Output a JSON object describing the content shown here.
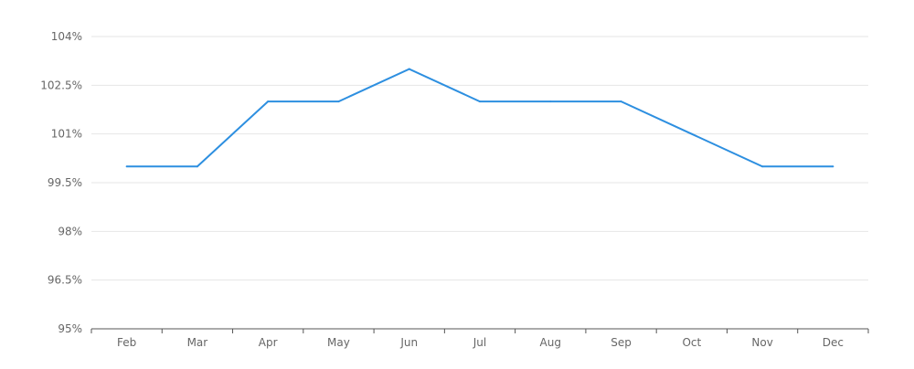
{
  "chart_data": {
    "type": "line",
    "title": "",
    "xlabel": "",
    "ylabel": "",
    "categories": [
      "Feb",
      "Mar",
      "Apr",
      "May",
      "Jun",
      "Jul",
      "Aug",
      "Sep",
      "Oct",
      "Nov",
      "Dec"
    ],
    "series": [
      {
        "values": [
          100.0,
          100.0,
          102.0,
          102.0,
          103.0,
          102.0,
          102.0,
          102.0,
          101.0,
          100.0,
          100.0
        ],
        "color": "#2d8fe0"
      }
    ],
    "yticks": [
      95,
      96.5,
      98,
      99.5,
      101,
      102.5,
      104
    ],
    "ytick_labels": [
      "95%",
      "96.5%",
      "98%",
      "99.5%",
      "101%",
      "102.5%",
      "104%"
    ],
    "ylim": [
      95,
      104
    ],
    "grid": true,
    "legend": "none"
  }
}
